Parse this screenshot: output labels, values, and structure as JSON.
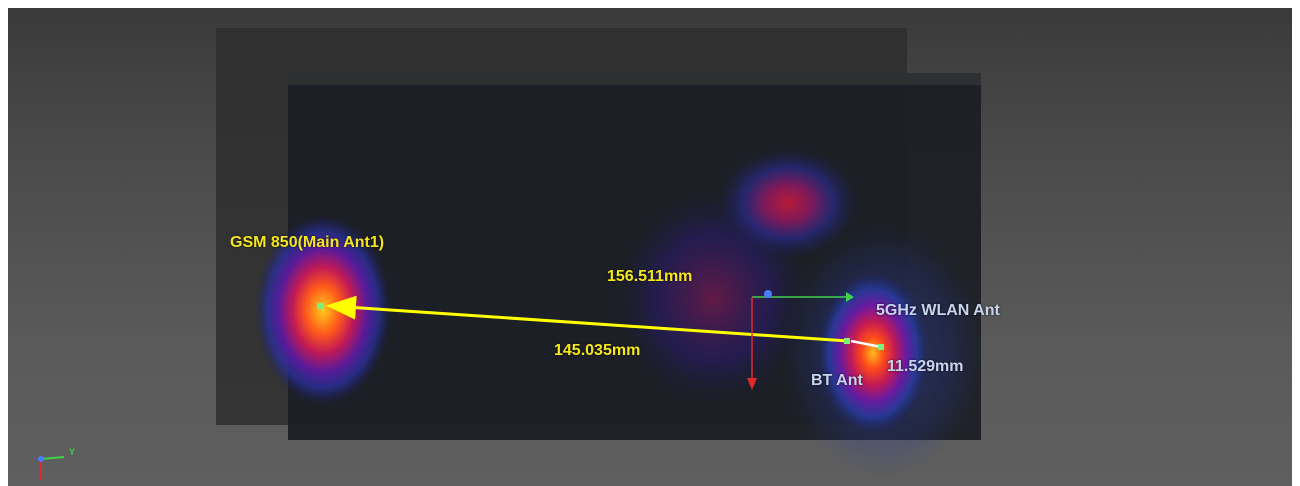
{
  "labels": {
    "antenna_gsm": "GSM 850(Main Ant1)",
    "antenna_wlan": "5GHz WLAN Ant",
    "antenna_bt": "BT Ant",
    "distance_long": "156.511mm",
    "distance_mid": "145.035mm",
    "distance_short": "11.529mm"
  },
  "axis_indicator": {
    "y_label": "Y"
  },
  "colors": {
    "antenna_label": "#f5e61e",
    "distance_label": "#f5e61e",
    "secondary_label": "#c9d4ee",
    "measure_line": "#ffff00",
    "axis_green": "#3fd24a",
    "axis_red": "#e02a2a",
    "axis_blue": "#4a7cff",
    "marker": "#7cf07c"
  }
}
